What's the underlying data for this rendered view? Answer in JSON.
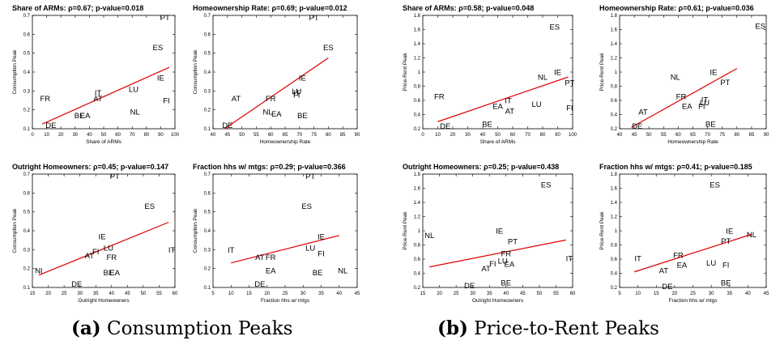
{
  "captions": [
    {
      "tag": "(a)",
      "text": "Consumption Peaks"
    },
    {
      "tag": "(b)",
      "text": "Price-to-Rent Peaks"
    }
  ],
  "colors": {
    "fit_line": "#e00000",
    "axes": "#000000",
    "text": "#000000"
  },
  "chart_data": [
    {
      "type": "scatter",
      "title": "Share of ARMs: ρ=0.67;  p-value=0.018",
      "xlabel": "Share of ARMs",
      "ylabel": "Consumption Peak",
      "xlim": [
        0,
        100
      ],
      "ylim": [
        0.1,
        0.7
      ],
      "xticks": [
        0,
        10,
        20,
        30,
        40,
        50,
        60,
        70,
        80,
        90,
        100
      ],
      "yticks": [
        0.1,
        0.2,
        0.3,
        0.4,
        0.5,
        0.6,
        0.7
      ],
      "points": [
        {
          "label": "PT",
          "x": 93,
          "y": 0.69
        },
        {
          "label": "ES",
          "x": 88,
          "y": 0.53
        },
        {
          "label": "IE",
          "x": 90,
          "y": 0.37
        },
        {
          "label": "FI",
          "x": 94,
          "y": 0.25
        },
        {
          "label": "LU",
          "x": 71,
          "y": 0.31
        },
        {
          "label": "NL",
          "x": 72,
          "y": 0.19
        },
        {
          "label": "IT",
          "x": 46,
          "y": 0.29
        },
        {
          "label": "AT",
          "x": 46,
          "y": 0.26
        },
        {
          "label": "FR",
          "x": 9,
          "y": 0.26
        },
        {
          "label": "BE",
          "x": 33,
          "y": 0.17
        },
        {
          "label": "EA",
          "x": 37,
          "y": 0.17
        },
        {
          "label": "DE",
          "x": 13,
          "y": 0.12
        }
      ],
      "fit_line": [
        [
          7,
          0.125
        ],
        [
          96,
          0.425
        ]
      ],
      "grid": false
    },
    {
      "type": "scatter",
      "title": "Homeownership Rate: ρ=0.69;  p-value=0.012",
      "xlabel": "Homeownership Rate",
      "ylabel": "Consumption Peak",
      "xlim": [
        40,
        90
      ],
      "ylim": [
        0.1,
        0.7
      ],
      "xticks": [
        40,
        45,
        50,
        55,
        60,
        65,
        70,
        75,
        80,
        85,
        90
      ],
      "yticks": [
        0.1,
        0.2,
        0.3,
        0.4,
        0.5,
        0.6,
        0.7
      ],
      "points": [
        {
          "label": "PT",
          "x": 75,
          "y": 0.69
        },
        {
          "label": "ES",
          "x": 80,
          "y": 0.53
        },
        {
          "label": "IE",
          "x": 71,
          "y": 0.37
        },
        {
          "label": "LU",
          "x": 69,
          "y": 0.3
        },
        {
          "label": "IT",
          "x": 69,
          "y": 0.29
        },
        {
          "label": "FI",
          "x": 69,
          "y": 0.28
        },
        {
          "label": "AT",
          "x": 48,
          "y": 0.26
        },
        {
          "label": "FR",
          "x": 60,
          "y": 0.26
        },
        {
          "label": "NL",
          "x": 59,
          "y": 0.19
        },
        {
          "label": "EA",
          "x": 62,
          "y": 0.18
        },
        {
          "label": "BE",
          "x": 71,
          "y": 0.17
        },
        {
          "label": "DE",
          "x": 45,
          "y": 0.12
        }
      ],
      "fit_line": [
        [
          44,
          0.1
        ],
        [
          80,
          0.475
        ]
      ],
      "grid": false
    },
    {
      "type": "scatter",
      "title": "Share of ARMs: ρ=0.58;  p-value=0.048",
      "xlabel": "Share of ARMs",
      "ylabel": "Price-Rent Peak",
      "xlim": [
        0,
        100
      ],
      "ylim": [
        0.2,
        1.8
      ],
      "xticks": [
        0,
        10,
        20,
        30,
        40,
        50,
        60,
        70,
        80,
        90,
        100
      ],
      "yticks": [
        0.2,
        0.4,
        0.6,
        0.8,
        1,
        1.2,
        1.4,
        1.6,
        1.8
      ],
      "points": [
        {
          "label": "ES",
          "x": 88,
          "y": 1.64
        },
        {
          "label": "IE",
          "x": 90,
          "y": 1.0
        },
        {
          "label": "NL",
          "x": 80,
          "y": 0.93
        },
        {
          "label": "PT",
          "x": 98,
          "y": 0.85
        },
        {
          "label": "FR",
          "x": 11,
          "y": 0.66
        },
        {
          "label": "IT",
          "x": 57,
          "y": 0.6
        },
        {
          "label": "EA",
          "x": 50,
          "y": 0.52
        },
        {
          "label": "LU",
          "x": 76,
          "y": 0.55
        },
        {
          "label": "AT",
          "x": 58,
          "y": 0.45
        },
        {
          "label": "FI",
          "x": 98,
          "y": 0.5
        },
        {
          "label": "BE",
          "x": 43,
          "y": 0.27
        },
        {
          "label": "DE",
          "x": 15,
          "y": 0.24
        }
      ],
      "fit_line": [
        [
          10,
          0.3
        ],
        [
          97,
          0.93
        ]
      ],
      "grid": false
    },
    {
      "type": "scatter",
      "title": "Homeownership Rate: ρ=0.61;  p-value=0.036",
      "xlabel": "Homeownership Rate",
      "ylabel": "Price-Rent Peak",
      "xlim": [
        40,
        90
      ],
      "ylim": [
        0.2,
        1.8
      ],
      "xticks": [
        40,
        45,
        50,
        55,
        60,
        65,
        70,
        75,
        80,
        85,
        90
      ],
      "yticks": [
        0.2,
        0.4,
        0.6,
        0.8,
        1,
        1.2,
        1.4,
        1.6,
        1.8
      ],
      "points": [
        {
          "label": "ES",
          "x": 88,
          "y": 1.65
        },
        {
          "label": "IE",
          "x": 72,
          "y": 1.0
        },
        {
          "label": "NL",
          "x": 59,
          "y": 0.93
        },
        {
          "label": "PT",
          "x": 76,
          "y": 0.86
        },
        {
          "label": "FR",
          "x": 61,
          "y": 0.66
        },
        {
          "label": "IT",
          "x": 69,
          "y": 0.61
        },
        {
          "label": "LU",
          "x": 69,
          "y": 0.57
        },
        {
          "label": "FI",
          "x": 68,
          "y": 0.52
        },
        {
          "label": "EA",
          "x": 63,
          "y": 0.52
        },
        {
          "label": "AT",
          "x": 48,
          "y": 0.44
        },
        {
          "label": "BE",
          "x": 71,
          "y": 0.27
        },
        {
          "label": "DE",
          "x": 46,
          "y": 0.24
        }
      ],
      "fit_line": [
        [
          44,
          0.22
        ],
        [
          80,
          1.05
        ]
      ],
      "grid": false
    },
    {
      "type": "scatter",
      "title": "Outright Homeowners: ρ=0.45;  p-value=0.147",
      "xlabel": "Outright Homeowners",
      "ylabel": "Consumption Peak",
      "xlim": [
        15,
        60
      ],
      "ylim": [
        0.1,
        0.7
      ],
      "xticks": [
        15,
        20,
        25,
        30,
        35,
        40,
        45,
        50,
        55,
        60
      ],
      "yticks": [
        0.1,
        0.2,
        0.3,
        0.4,
        0.5,
        0.6,
        0.7
      ],
      "points": [
        {
          "label": "PT",
          "x": 41,
          "y": 0.69
        },
        {
          "label": "ES",
          "x": 52,
          "y": 0.53
        },
        {
          "label": "IE",
          "x": 37,
          "y": 0.37
        },
        {
          "label": "LU",
          "x": 39,
          "y": 0.31
        },
        {
          "label": "IT",
          "x": 59,
          "y": 0.3
        },
        {
          "label": "FI",
          "x": 35,
          "y": 0.29
        },
        {
          "label": "AT",
          "x": 33,
          "y": 0.27
        },
        {
          "label": "FR",
          "x": 40,
          "y": 0.26
        },
        {
          "label": "BE",
          "x": 39,
          "y": 0.18
        },
        {
          "label": "EA",
          "x": 41,
          "y": 0.18
        },
        {
          "label": "NI",
          "x": 17,
          "y": 0.19
        },
        {
          "label": "DE",
          "x": 29,
          "y": 0.12
        }
      ],
      "fit_line": [
        [
          17,
          0.165
        ],
        [
          58,
          0.445
        ]
      ],
      "grid": false
    },
    {
      "type": "scatter",
      "title": "Fraction hhs w/ mtgs: ρ=0.29;  p-value=0.366",
      "xlabel": "Fraction hhs w/ mtgs",
      "ylabel": "Consumption Peak",
      "xlim": [
        5,
        45
      ],
      "ylim": [
        0.1,
        0.7
      ],
      "xticks": [
        5,
        10,
        15,
        20,
        25,
        30,
        35,
        40,
        45
      ],
      "yticks": [
        0.1,
        0.2,
        0.3,
        0.4,
        0.5,
        0.6,
        0.7
      ],
      "points": [
        {
          "label": "PT",
          "x": 32,
          "y": 0.69
        },
        {
          "label": "ES",
          "x": 31,
          "y": 0.53
        },
        {
          "label": "IE",
          "x": 35,
          "y": 0.37
        },
        {
          "label": "LU",
          "x": 32,
          "y": 0.31
        },
        {
          "label": "IT",
          "x": 10,
          "y": 0.3
        },
        {
          "label": "AT",
          "x": 18,
          "y": 0.26
        },
        {
          "label": "FR",
          "x": 21,
          "y": 0.26
        },
        {
          "label": "FI",
          "x": 35,
          "y": 0.28
        },
        {
          "label": "EA",
          "x": 21,
          "y": 0.19
        },
        {
          "label": "BE",
          "x": 34,
          "y": 0.18
        },
        {
          "label": "NL",
          "x": 41,
          "y": 0.19
        },
        {
          "label": "DE",
          "x": 18,
          "y": 0.12
        }
      ],
      "fit_line": [
        [
          10,
          0.23
        ],
        [
          40,
          0.375
        ]
      ],
      "grid": false
    },
    {
      "type": "scatter",
      "title": "Outright Homeowners: ρ=0.25;  p-value=0.438",
      "xlabel": "Outright Homeowners",
      "ylabel": "Price-Rent Peak",
      "xlim": [
        15,
        60
      ],
      "ylim": [
        0.2,
        1.8
      ],
      "xticks": [
        15,
        20,
        25,
        30,
        35,
        40,
        45,
        50,
        55,
        60
      ],
      "yticks": [
        0.2,
        0.4,
        0.6,
        0.8,
        1,
        1.2,
        1.4,
        1.6,
        1.8
      ],
      "points": [
        {
          "label": "ES",
          "x": 52,
          "y": 1.65
        },
        {
          "label": "IE",
          "x": 38,
          "y": 1.0
        },
        {
          "label": "NL",
          "x": 17,
          "y": 0.94
        },
        {
          "label": "PT",
          "x": 42,
          "y": 0.85
        },
        {
          "label": "FR",
          "x": 40,
          "y": 0.68
        },
        {
          "label": "IT",
          "x": 59,
          "y": 0.61
        },
        {
          "label": "LU",
          "x": 39,
          "y": 0.58
        },
        {
          "label": "FI",
          "x": 36,
          "y": 0.54
        },
        {
          "label": "EA",
          "x": 41,
          "y": 0.53
        },
        {
          "label": "AT",
          "x": 34,
          "y": 0.47
        },
        {
          "label": "BE",
          "x": 40,
          "y": 0.27
        },
        {
          "label": "DE",
          "x": 29,
          "y": 0.23
        }
      ],
      "fit_line": [
        [
          17,
          0.49
        ],
        [
          58,
          0.87
        ]
      ],
      "grid": false
    },
    {
      "type": "scatter",
      "title": "Fraction hhs w/ mtgs: ρ=0.41;  p-value=0.185",
      "xlabel": "Fraction hhs w/ mtgs",
      "ylabel": "Price-Rent Peak",
      "xlim": [
        5,
        45
      ],
      "ylim": [
        0.2,
        1.8
      ],
      "xticks": [
        5,
        10,
        15,
        20,
        25,
        30,
        35,
        40,
        45
      ],
      "yticks": [
        0.2,
        0.4,
        0.6,
        0.8,
        1,
        1.2,
        1.4,
        1.6,
        1.8
      ],
      "points": [
        {
          "label": "ES",
          "x": 31,
          "y": 1.65
        },
        {
          "label": "IE",
          "x": 35,
          "y": 1.0
        },
        {
          "label": "NL",
          "x": 41,
          "y": 0.95
        },
        {
          "label": "PT",
          "x": 34,
          "y": 0.86
        },
        {
          "label": "IT",
          "x": 10,
          "y": 0.61
        },
        {
          "label": "FR",
          "x": 21,
          "y": 0.66
        },
        {
          "label": "EA",
          "x": 22,
          "y": 0.52
        },
        {
          "label": "LU",
          "x": 30,
          "y": 0.55
        },
        {
          "label": "FI",
          "x": 34,
          "y": 0.52
        },
        {
          "label": "AT",
          "x": 17,
          "y": 0.44
        },
        {
          "label": "BE",
          "x": 34,
          "y": 0.27
        },
        {
          "label": "DE",
          "x": 18,
          "y": 0.22
        }
      ],
      "fit_line": [
        [
          9,
          0.42
        ],
        [
          41,
          0.95
        ]
      ],
      "grid": false
    }
  ]
}
